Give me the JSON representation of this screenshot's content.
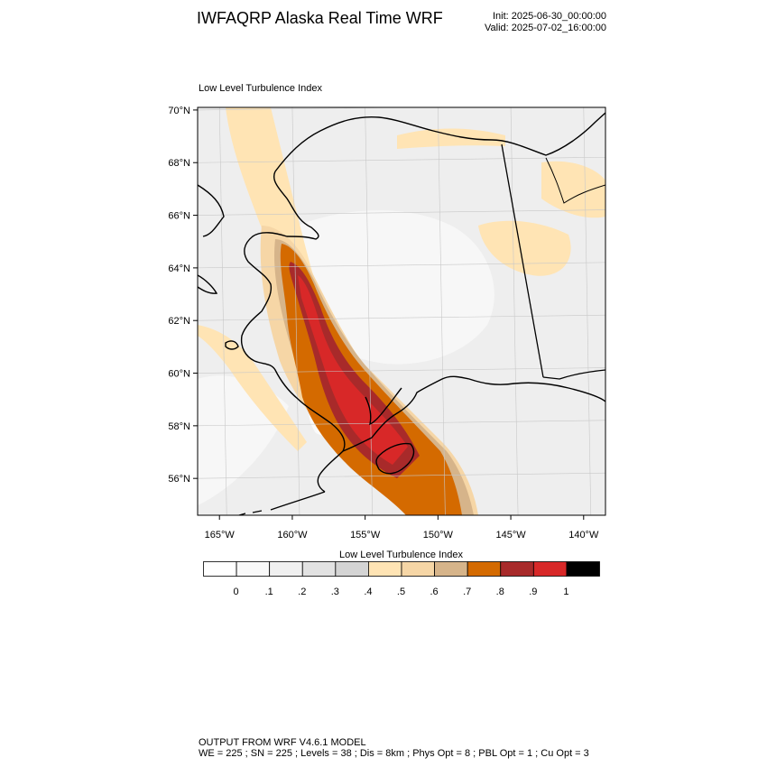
{
  "header": {
    "title": "IWFAQRP Alaska Real Time WRF",
    "init": "Init: 2025-06-30_00:00:00",
    "valid": "Valid: 2025-07-02_16:00:00"
  },
  "plot_title": "Low Level Turbulence Index",
  "map": {
    "lat_ticks": [
      "70°N",
      "68°N",
      "66°N",
      "64°N",
      "62°N",
      "60°N",
      "58°N",
      "56°N"
    ],
    "lon_ticks": [
      "165°W",
      "160°W",
      "155°W",
      "150°W",
      "145°W",
      "140°W"
    ],
    "lat_values": [
      70,
      68,
      66,
      64,
      62,
      60,
      58,
      56
    ],
    "lon_values": [
      -165,
      -160,
      -155,
      -150,
      -145,
      -140
    ],
    "extent": {
      "lon": [
        -166.5,
        -138.5
      ],
      "lat": [
        54.6,
        70.1
      ]
    },
    "background_fill": "#eeeeee"
  },
  "colorbar": {
    "title": "Low Level Turbulence Index",
    "labels": [
      "0",
      ".1",
      ".2",
      ".3",
      ".4",
      ".5",
      ".6",
      ".7",
      ".8",
      ".9",
      "1"
    ],
    "colors": [
      "#ffffff",
      "#f9f9f9",
      "#f0f0f0",
      "#e2e2e2",
      "#d4d4d4",
      "#ffe4b4",
      "#f6d6a6",
      "#d6b48a",
      "#d46a00",
      "#a82a2a",
      "#d82828",
      "#000000"
    ]
  },
  "footer": {
    "line1": "OUTPUT FROM WRF V4.6.1 MODEL",
    "line2": "WE = 225 ; SN = 225 ; Levels = 38 ; Dis = 8km ; Phys Opt = 8 ; PBL Opt = 1 ; Cu Opt = 3"
  }
}
